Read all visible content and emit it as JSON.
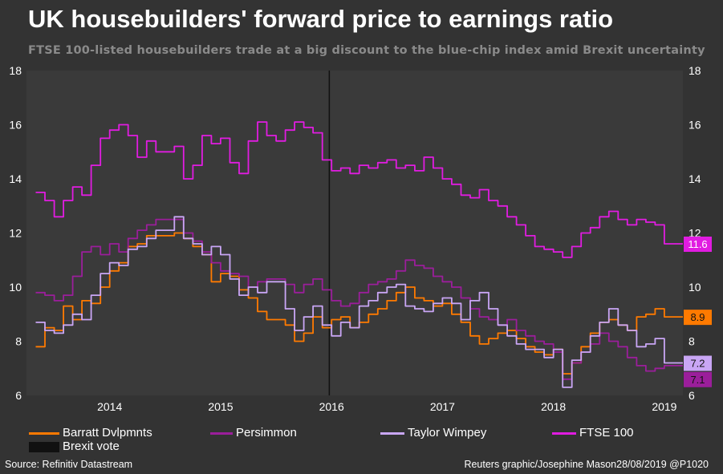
{
  "title": "UK housebuilders' forward price to earnings ratio",
  "subtitle": "FTSE 100-listed housebuilders trade at a big discount to the blue-chip index amid Brexit uncertainty",
  "source": "Source: Refinitiv Datastream",
  "credit": "Reuters graphic/Josephine Mason28/08/2019 @P1020",
  "chart_data": {
    "type": "line",
    "ylim": [
      6,
      18
    ],
    "yticks": [
      "6",
      "8",
      "10",
      "12",
      "14",
      "16",
      "18"
    ],
    "xticks": [
      "2014",
      "2015",
      "2016",
      "2017",
      "2018",
      "2019"
    ],
    "grid": false,
    "legend_position": "bottom",
    "annotation": {
      "name": "Brexit vote",
      "x": "2016-06-24"
    },
    "series": [
      {
        "name": "Barratt Dvlpmnts",
        "color": "#ff7a00",
        "end_label": "8.9",
        "points": [
          [
            "2013-11",
            7.8
          ],
          [
            "2013-12",
            8.5
          ],
          [
            "2014-01",
            8.4
          ],
          [
            "2014-02",
            9.3
          ],
          [
            "2014-03",
            8.8
          ],
          [
            "2014-04",
            9.5
          ],
          [
            "2014-05",
            9.4
          ],
          [
            "2014-06",
            10.0
          ],
          [
            "2014-07",
            10.6
          ],
          [
            "2014-08",
            10.9
          ],
          [
            "2014-09",
            11.5
          ],
          [
            "2014-10",
            11.6
          ],
          [
            "2014-11",
            11.9
          ],
          [
            "2014-12",
            11.9
          ],
          [
            "2015-02",
            12.0
          ],
          [
            "2015-03",
            11.8
          ],
          [
            "2015-04",
            11.5
          ],
          [
            "2015-05",
            11.2
          ],
          [
            "2015-06",
            10.2
          ],
          [
            "2015-07",
            10.5
          ],
          [
            "2015-08",
            10.4
          ],
          [
            "2015-09",
            9.9
          ],
          [
            "2015-10",
            9.6
          ],
          [
            "2015-11",
            9.1
          ],
          [
            "2015-12",
            8.8
          ],
          [
            "2016-02",
            8.6
          ],
          [
            "2016-03",
            8.0
          ],
          [
            "2016-04",
            8.3
          ],
          [
            "2016-05",
            8.9
          ],
          [
            "2016-06",
            8.5
          ],
          [
            "2016-07",
            8.8
          ],
          [
            "2016-08",
            8.9
          ],
          [
            "2016-09",
            8.5
          ],
          [
            "2016-10",
            8.7
          ],
          [
            "2016-11",
            9.0
          ],
          [
            "2016-12",
            9.2
          ],
          [
            "2017-01",
            9.5
          ],
          [
            "2017-02",
            9.8
          ],
          [
            "2017-03",
            10.0
          ],
          [
            "2017-04",
            9.6
          ],
          [
            "2017-05",
            9.5
          ],
          [
            "2017-06",
            9.3
          ],
          [
            "2017-07",
            9.4
          ],
          [
            "2017-08",
            9.0
          ],
          [
            "2017-09",
            8.7
          ],
          [
            "2017-10",
            8.2
          ],
          [
            "2017-11",
            7.9
          ],
          [
            "2017-12",
            8.1
          ],
          [
            "2018-01",
            8.3
          ],
          [
            "2018-02",
            8.4
          ],
          [
            "2018-03",
            8.1
          ],
          [
            "2018-04",
            7.8
          ],
          [
            "2018-05",
            7.6
          ],
          [
            "2018-06",
            7.5
          ],
          [
            "2018-07",
            7.7
          ],
          [
            "2018-08",
            6.8
          ],
          [
            "2018-09",
            7.2
          ],
          [
            "2018-10",
            7.8
          ],
          [
            "2018-11",
            8.3
          ],
          [
            "2018-12",
            8.7
          ],
          [
            "2019-01",
            8.8
          ],
          [
            "2019-02",
            8.6
          ],
          [
            "2019-03",
            8.4
          ],
          [
            "2019-04",
            8.9
          ],
          [
            "2019-05",
            9.0
          ],
          [
            "2019-06",
            9.2
          ],
          [
            "2019-07",
            8.9
          ]
        ]
      },
      {
        "name": "Persimmon",
        "color": "#9b1e9b",
        "end_label": "7.1",
        "points": [
          [
            "2013-11",
            9.8
          ],
          [
            "2013-12",
            9.7
          ],
          [
            "2014-01",
            9.5
          ],
          [
            "2014-02",
            9.7
          ],
          [
            "2014-03",
            10.4
          ],
          [
            "2014-04",
            11.3
          ],
          [
            "2014-05",
            11.5
          ],
          [
            "2014-06",
            11.2
          ],
          [
            "2014-07",
            11.6
          ],
          [
            "2014-08",
            11.3
          ],
          [
            "2014-09",
            11.8
          ],
          [
            "2014-10",
            12.1
          ],
          [
            "2014-11",
            12.3
          ],
          [
            "2014-12",
            12.5
          ],
          [
            "2015-02",
            12.5
          ],
          [
            "2015-03",
            12.0
          ],
          [
            "2015-04",
            11.7
          ],
          [
            "2015-05",
            11.3
          ],
          [
            "2015-06",
            10.9
          ],
          [
            "2015-07",
            10.6
          ],
          [
            "2015-08",
            10.5
          ],
          [
            "2015-09",
            10.4
          ],
          [
            "2015-10",
            10.0
          ],
          [
            "2015-11",
            10.2
          ],
          [
            "2015-12",
            10.3
          ],
          [
            "2016-02",
            10.1
          ],
          [
            "2016-03",
            9.8
          ],
          [
            "2016-04",
            10.1
          ],
          [
            "2016-05",
            10.3
          ],
          [
            "2016-06",
            9.9
          ],
          [
            "2016-07",
            9.5
          ],
          [
            "2016-08",
            9.3
          ],
          [
            "2016-09",
            9.4
          ],
          [
            "2016-10",
            9.8
          ],
          [
            "2016-11",
            10.1
          ],
          [
            "2016-12",
            10.2
          ],
          [
            "2017-01",
            10.3
          ],
          [
            "2017-02",
            10.6
          ],
          [
            "2017-03",
            11.0
          ],
          [
            "2017-04",
            10.8
          ],
          [
            "2017-05",
            10.7
          ],
          [
            "2017-06",
            10.4
          ],
          [
            "2017-07",
            10.2
          ],
          [
            "2017-08",
            10.0
          ],
          [
            "2017-09",
            9.6
          ],
          [
            "2017-10",
            9.2
          ],
          [
            "2017-11",
            8.9
          ],
          [
            "2017-12",
            8.8
          ],
          [
            "2018-01",
            8.6
          ],
          [
            "2018-02",
            8.8
          ],
          [
            "2018-03",
            8.4
          ],
          [
            "2018-04",
            8.2
          ],
          [
            "2018-05",
            8.0
          ],
          [
            "2018-06",
            7.9
          ],
          [
            "2018-07",
            7.6
          ],
          [
            "2018-08",
            6.6
          ],
          [
            "2018-09",
            7.2
          ],
          [
            "2018-10",
            7.6
          ],
          [
            "2018-11",
            7.9
          ],
          [
            "2018-12",
            8.3
          ],
          [
            "2019-01",
            8.0
          ],
          [
            "2019-02",
            7.8
          ],
          [
            "2019-03",
            7.4
          ],
          [
            "2019-04",
            7.1
          ],
          [
            "2019-05",
            6.9
          ],
          [
            "2019-06",
            7.0
          ],
          [
            "2019-07",
            7.1
          ]
        ]
      },
      {
        "name": "Taylor Wimpey",
        "color": "#c9a6f5",
        "end_label": "7.2",
        "points": [
          [
            "2013-11",
            8.7
          ],
          [
            "2013-12",
            8.4
          ],
          [
            "2014-01",
            8.3
          ],
          [
            "2014-02",
            8.6
          ],
          [
            "2014-03",
            9.0
          ],
          [
            "2014-04",
            8.8
          ],
          [
            "2014-05",
            9.7
          ],
          [
            "2014-06",
            10.5
          ],
          [
            "2014-07",
            10.9
          ],
          [
            "2014-08",
            10.8
          ],
          [
            "2014-09",
            11.4
          ],
          [
            "2014-10",
            11.5
          ],
          [
            "2014-11",
            11.8
          ],
          [
            "2014-12",
            12.1
          ],
          [
            "2015-02",
            12.6
          ],
          [
            "2015-03",
            11.8
          ],
          [
            "2015-04",
            11.6
          ],
          [
            "2015-05",
            11.2
          ],
          [
            "2015-06",
            11.5
          ],
          [
            "2015-07",
            11.2
          ],
          [
            "2015-08",
            10.3
          ],
          [
            "2015-09",
            9.7
          ],
          [
            "2015-10",
            10.0
          ],
          [
            "2015-11",
            9.8
          ],
          [
            "2015-12",
            10.2
          ],
          [
            "2016-02",
            9.2
          ],
          [
            "2016-03",
            8.4
          ],
          [
            "2016-04",
            8.9
          ],
          [
            "2016-05",
            9.3
          ],
          [
            "2016-06",
            8.6
          ],
          [
            "2016-07",
            8.2
          ],
          [
            "2016-08",
            8.7
          ],
          [
            "2016-09",
            8.5
          ],
          [
            "2016-10",
            9.3
          ],
          [
            "2016-11",
            9.5
          ],
          [
            "2016-12",
            9.8
          ],
          [
            "2017-01",
            10.0
          ],
          [
            "2017-02",
            10.1
          ],
          [
            "2017-03",
            9.3
          ],
          [
            "2017-04",
            9.2
          ],
          [
            "2017-05",
            9.1
          ],
          [
            "2017-06",
            9.4
          ],
          [
            "2017-07",
            9.6
          ],
          [
            "2017-08",
            9.4
          ],
          [
            "2017-09",
            8.8
          ],
          [
            "2017-10",
            9.5
          ],
          [
            "2017-11",
            9.8
          ],
          [
            "2017-12",
            9.2
          ],
          [
            "2018-01",
            8.6
          ],
          [
            "2018-02",
            8.2
          ],
          [
            "2018-03",
            7.9
          ],
          [
            "2018-04",
            7.7
          ],
          [
            "2018-05",
            7.7
          ],
          [
            "2018-06",
            7.4
          ],
          [
            "2018-07",
            7.7
          ],
          [
            "2018-08",
            6.3
          ],
          [
            "2018-09",
            7.3
          ],
          [
            "2018-10",
            7.6
          ],
          [
            "2018-11",
            8.2
          ],
          [
            "2018-12",
            8.7
          ],
          [
            "2019-01",
            9.2
          ],
          [
            "2019-02",
            8.6
          ],
          [
            "2019-03",
            8.4
          ],
          [
            "2019-04",
            7.8
          ],
          [
            "2019-05",
            7.9
          ],
          [
            "2019-06",
            8.1
          ],
          [
            "2019-07",
            7.2
          ]
        ]
      },
      {
        "name": "FTSE 100",
        "color": "#e11ce1",
        "end_label": "11.6",
        "points": [
          [
            "2013-11",
            13.5
          ],
          [
            "2013-12",
            13.2
          ],
          [
            "2014-01",
            12.6
          ],
          [
            "2014-02",
            13.2
          ],
          [
            "2014-03",
            13.7
          ],
          [
            "2014-04",
            13.4
          ],
          [
            "2014-05",
            14.5
          ],
          [
            "2014-06",
            15.5
          ],
          [
            "2014-07",
            15.8
          ],
          [
            "2014-08",
            16.0
          ],
          [
            "2014-09",
            15.6
          ],
          [
            "2014-10",
            14.8
          ],
          [
            "2014-11",
            15.4
          ],
          [
            "2014-12",
            15.0
          ],
          [
            "2015-02",
            15.2
          ],
          [
            "2015-03",
            14.0
          ],
          [
            "2015-04",
            14.5
          ],
          [
            "2015-05",
            15.6
          ],
          [
            "2015-06",
            15.3
          ],
          [
            "2015-07",
            15.5
          ],
          [
            "2015-08",
            14.6
          ],
          [
            "2015-09",
            14.2
          ],
          [
            "2015-10",
            15.4
          ],
          [
            "2015-11",
            16.1
          ],
          [
            "2015-12",
            15.6
          ],
          [
            "2016-01",
            15.4
          ],
          [
            "2016-02",
            15.8
          ],
          [
            "2016-03",
            16.1
          ],
          [
            "2016-04",
            15.9
          ],
          [
            "2016-05",
            15.7
          ],
          [
            "2016-06",
            14.7
          ],
          [
            "2016-07",
            14.3
          ],
          [
            "2016-08",
            14.4
          ],
          [
            "2016-09",
            14.2
          ],
          [
            "2016-10",
            14.5
          ],
          [
            "2016-11",
            14.4
          ],
          [
            "2016-12",
            14.6
          ],
          [
            "2017-01",
            14.7
          ],
          [
            "2017-02",
            14.4
          ],
          [
            "2017-03",
            14.5
          ],
          [
            "2017-04",
            14.3
          ],
          [
            "2017-05",
            14.8
          ],
          [
            "2017-06",
            14.4
          ],
          [
            "2017-07",
            14.0
          ],
          [
            "2017-08",
            13.8
          ],
          [
            "2017-09",
            13.4
          ],
          [
            "2017-10",
            13.3
          ],
          [
            "2017-11",
            13.6
          ],
          [
            "2017-12",
            13.2
          ],
          [
            "2018-01",
            13.0
          ],
          [
            "2018-02",
            12.6
          ],
          [
            "2018-03",
            12.3
          ],
          [
            "2018-04",
            11.9
          ],
          [
            "2018-05",
            11.5
          ],
          [
            "2018-06",
            11.4
          ],
          [
            "2018-07",
            11.3
          ],
          [
            "2018-08",
            11.1
          ],
          [
            "2018-09",
            11.5
          ],
          [
            "2018-10",
            12.0
          ],
          [
            "2018-11",
            12.2
          ],
          [
            "2018-12",
            12.6
          ],
          [
            "2019-01",
            12.8
          ],
          [
            "2019-02",
            12.5
          ],
          [
            "2019-03",
            12.3
          ],
          [
            "2019-04",
            12.5
          ],
          [
            "2019-05",
            12.4
          ],
          [
            "2019-06",
            12.3
          ],
          [
            "2019-07",
            11.6
          ]
        ]
      }
    ]
  }
}
